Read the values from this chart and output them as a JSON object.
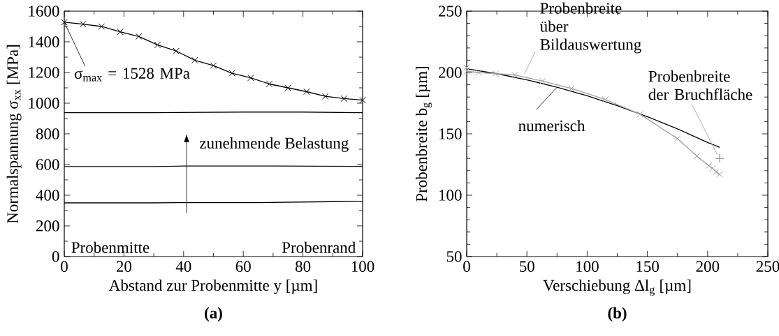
{
  "chart_data": [
    {
      "type": "line",
      "title": "(a)",
      "xlabel": "Abstand zur Probenmitte y [µm]",
      "ylabel": "Normalspannung σ$_{xx}$ [MPa]",
      "xlim": [
        0,
        100
      ],
      "ylim": [
        0,
        1600
      ],
      "xticks": [
        0,
        20,
        40,
        60,
        80,
        100
      ],
      "yticks": [
        0,
        200,
        400,
        600,
        800,
        1000,
        1200,
        1400,
        1600
      ],
      "series": [
        {
          "color": "#000000",
          "marker": "cross",
          "x": [
            0,
            6.25,
            12.5,
            18.75,
            25,
            31.25,
            37.5,
            43.75,
            50,
            56.25,
            62.5,
            68.75,
            75,
            81.25,
            87.5,
            93.75,
            100
          ],
          "values": [
            1528,
            1515,
            1500,
            1465,
            1435,
            1380,
            1340,
            1280,
            1245,
            1195,
            1165,
            1125,
            1100,
            1075,
            1045,
            1030,
            1020
          ]
        },
        {
          "color": "#000000",
          "marker": "none",
          "x": [
            0,
            30,
            60,
            80,
            100
          ],
          "values": [
            938,
            938,
            942,
            942,
            938
          ]
        },
        {
          "color": "#000000",
          "marker": "none",
          "x": [
            0,
            30,
            40,
            70,
            100
          ],
          "values": [
            587,
            587,
            590,
            590,
            588
          ]
        },
        {
          "color": "#000000",
          "marker": "none",
          "x": [
            0,
            30,
            40,
            65,
            90,
            100
          ],
          "values": [
            350,
            350,
            352,
            352,
            358,
            360
          ]
        }
      ],
      "annotations": [
        {
          "text": "σ$_{max}$ = 1528 MPa",
          "x": 0,
          "y": 1528
        },
        "zunehmende Belastung",
        "Probenmitte",
        "Probenrand"
      ]
    },
    {
      "type": "line",
      "title": "(b)",
      "xlabel": "Verschiebung Δl$_{g}$ [µm]",
      "ylabel": "Probenbreite b$_{g}$ [µm]",
      "xlim": [
        0,
        250
      ],
      "ylim": [
        50,
        250
      ],
      "xticks": [
        0,
        50,
        100,
        150,
        200,
        250
      ],
      "yticks": [
        50,
        100,
        150,
        200,
        250
      ],
      "series": [
        {
          "color": "#000000",
          "marker": "none",
          "x": [
            0,
            25,
            50,
            75,
            100,
            125,
            150,
            175,
            200,
            210
          ],
          "values": [
            203,
            199,
            194,
            188,
            181,
            173,
            164,
            154,
            143,
            139
          ]
        },
        {
          "color": "#a0a0a0",
          "marker": "cross",
          "x": [
            0,
            0,
            10,
            24,
            40,
            63,
            87,
            115,
            144,
            175,
            191,
            201,
            204,
            207,
            210
          ],
          "values": [
            204,
            201,
            200,
            199,
            198,
            193,
            187,
            178,
            166,
            146,
            132,
            124,
            122,
            119,
            117
          ]
        },
        {
          "type": "scatter",
          "color": "#808080",
          "marker": "plus",
          "x": [
            210
          ],
          "values": [
            130
          ]
        }
      ],
      "annotations": [
        {
          "text": "numerisch",
          "x": 75,
          "y": 188
        },
        {
          "text": "Probenbreite über Bildauswertung",
          "x": 48,
          "y": 199
        },
        {
          "text": "Probenbreite der Bruchfläche",
          "x": 208,
          "y": 133
        }
      ]
    }
  ]
}
